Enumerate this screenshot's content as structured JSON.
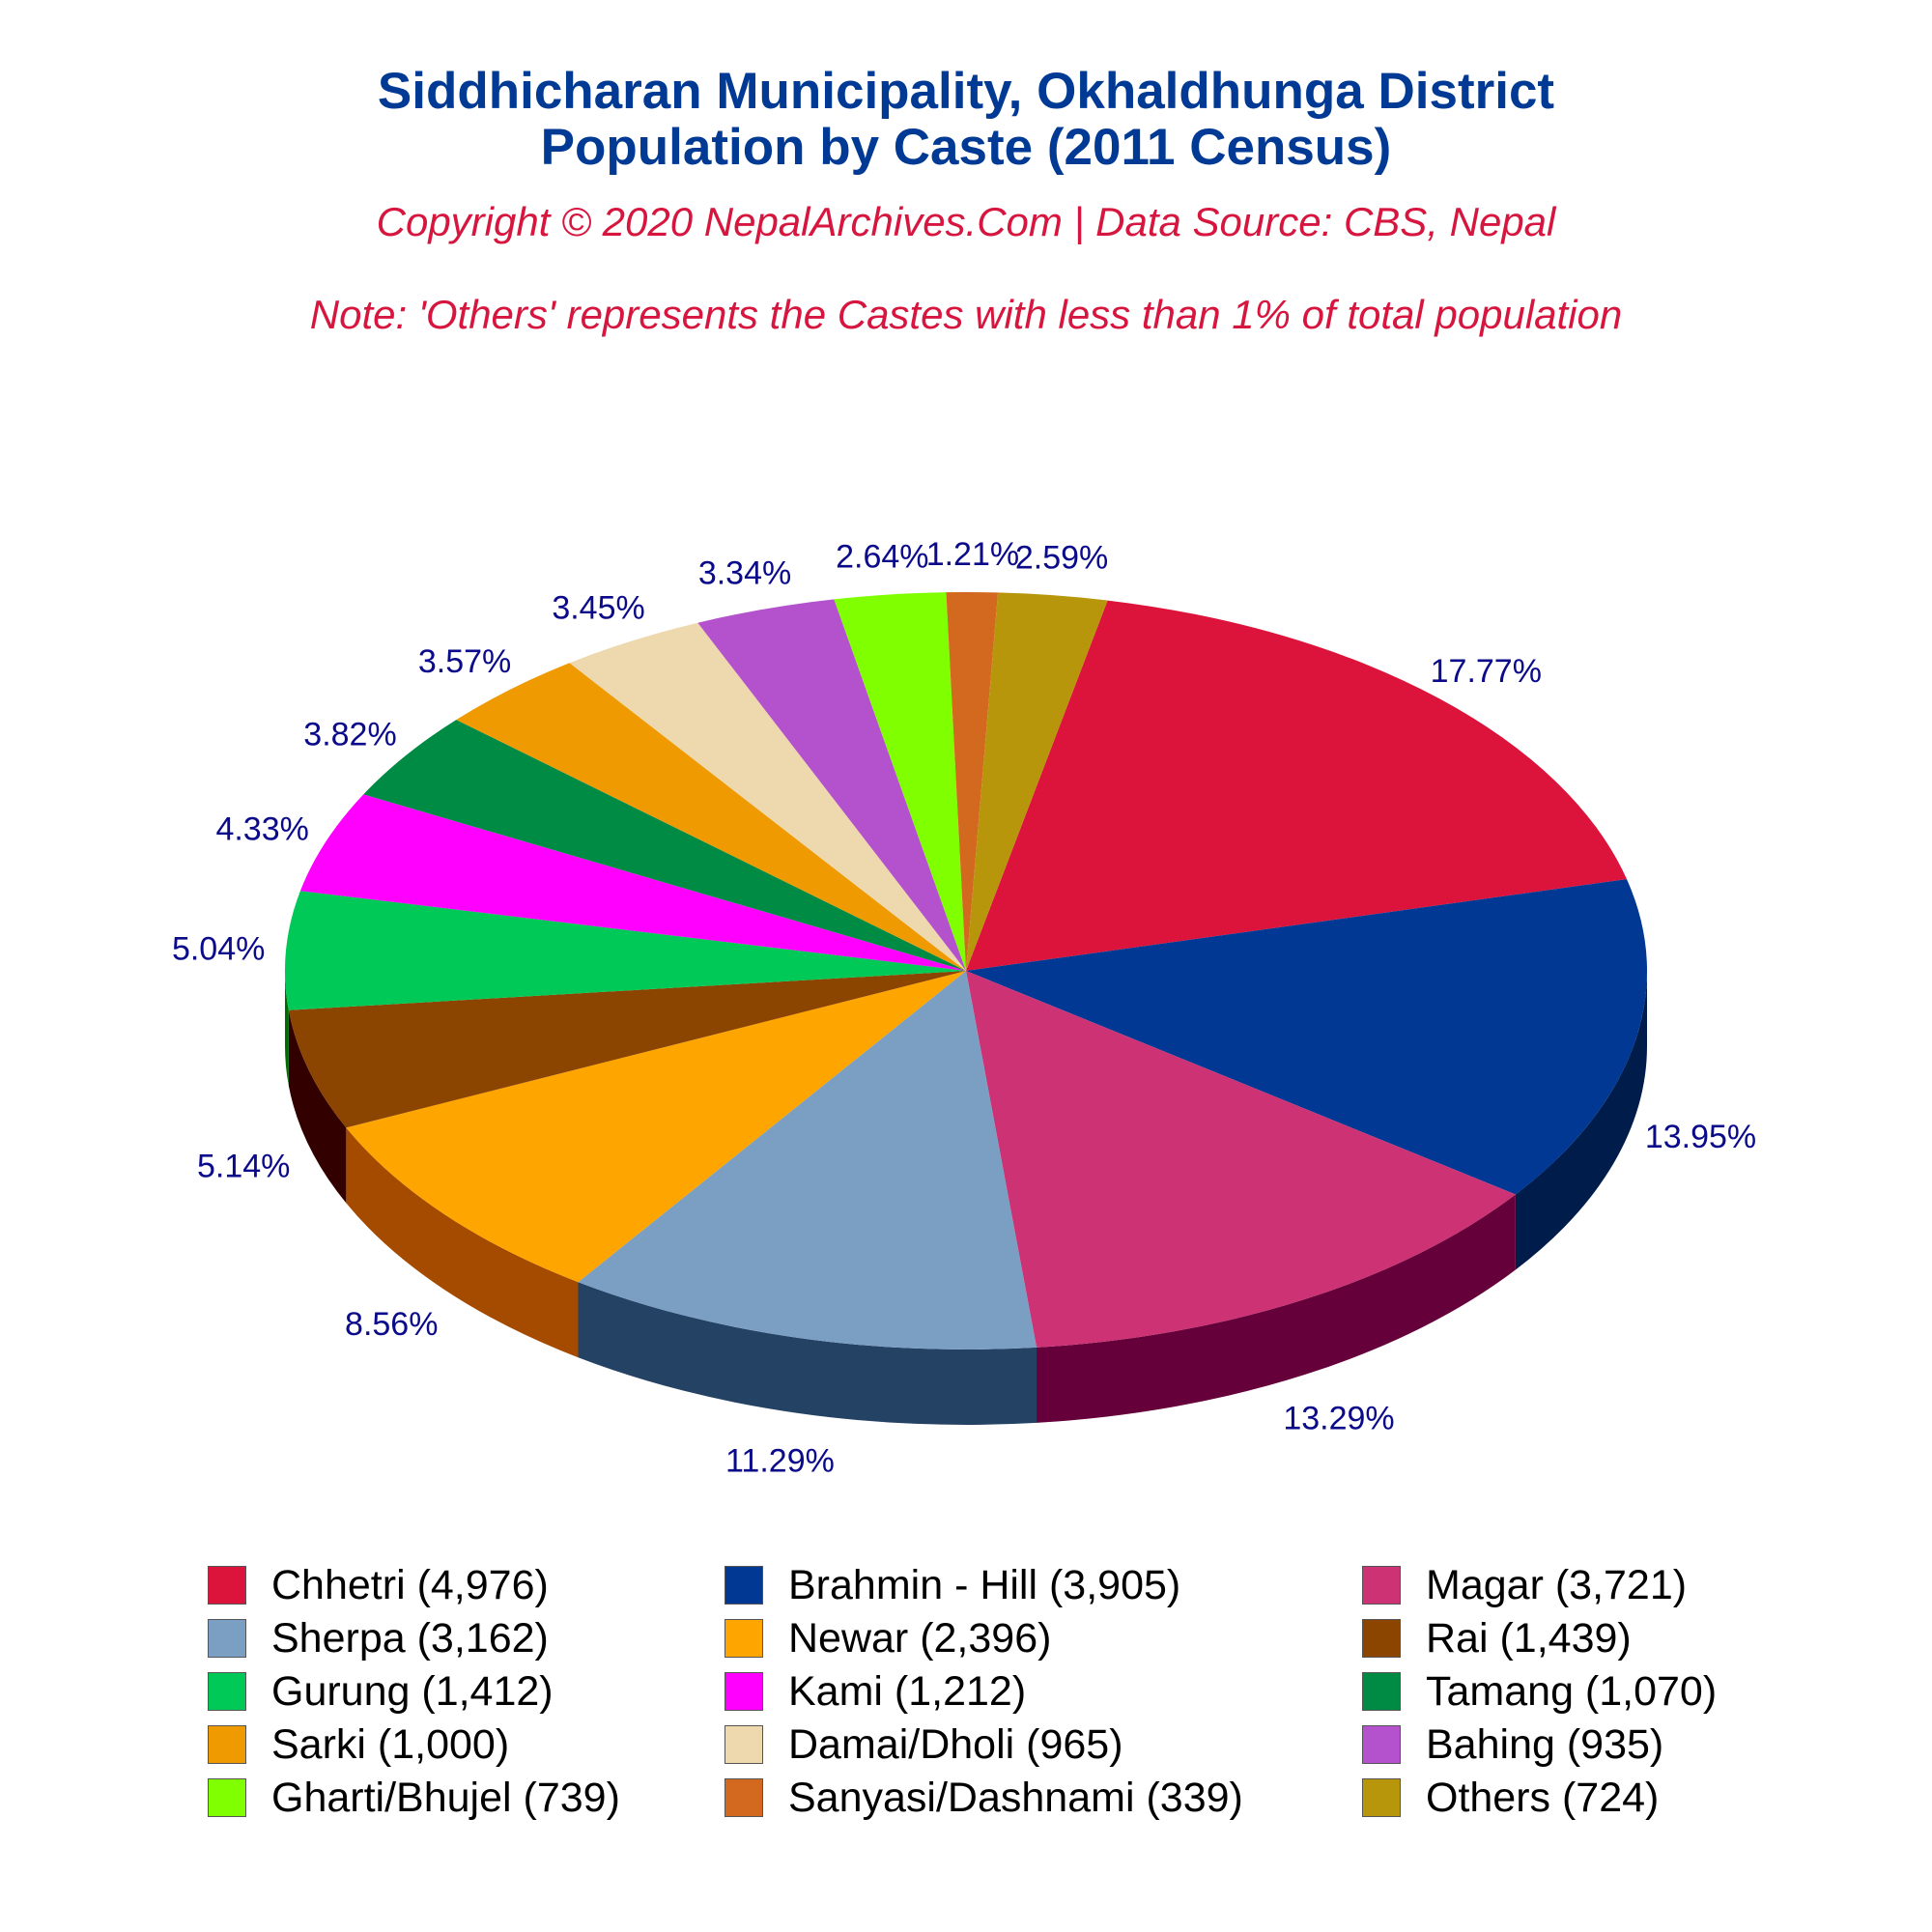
{
  "title_line1": "Siddhicharan Municipality, Okhaldhunga District",
  "title_line2": "Population by Caste (2011 Census)",
  "copyright": "Copyright © 2020 NepalArchives.Com | Data Source: CBS, Nepal",
  "note": "Note: 'Others' represents the Castes with less than 1% of total population",
  "chart_data": {
    "type": "pie",
    "style": "3d",
    "slices": [
      {
        "label": "Chhetri",
        "value": 4976,
        "percent_label": "17.77%",
        "legend": "Chhetri (4,976)",
        "color": "#dc143c",
        "side_color": "#6e0a1e"
      },
      {
        "label": "Brahmin - Hill",
        "value": 3905,
        "percent_label": "13.95%",
        "legend": "Brahmin - Hill (3,905)",
        "color": "#003893",
        "side_color": "#001c4a"
      },
      {
        "label": "Magar",
        "value": 3721,
        "percent_label": "13.29%",
        "legend": "Magar (3,721)",
        "color": "#cd3274",
        "side_color": "#66003a"
      },
      {
        "label": "Sherpa",
        "value": 3162,
        "percent_label": "11.29%",
        "legend": "Sherpa (3,162)",
        "color": "#7b9fc3",
        "side_color": "#244264"
      },
      {
        "label": "Newar",
        "value": 2396,
        "percent_label": "8.56%",
        "legend": "Newar (2,396)",
        "color": "#ffa500",
        "side_color": "#a54b00"
      },
      {
        "label": "Rai",
        "value": 1439,
        "percent_label": "5.14%",
        "legend": "Rai (1,439)",
        "color": "#8b4500",
        "side_color": "#330000"
      },
      {
        "label": "Gurung",
        "value": 1412,
        "percent_label": "5.04%",
        "legend": "Gurung (1,412)",
        "color": "#00c957",
        "side_color": "#006b00"
      },
      {
        "label": "Kami",
        "value": 1212,
        "percent_label": "4.33%",
        "legend": "Kami (1,212)",
        "color": "#ff00ff",
        "side_color": "#a000a0"
      },
      {
        "label": "Tamang",
        "value": 1070,
        "percent_label": "3.82%",
        "legend": "Tamang (1,070)",
        "color": "#008b45",
        "side_color": "#003300"
      },
      {
        "label": "Sarki",
        "value": 1000,
        "percent_label": "3.57%",
        "legend": "Sarki (1,000)",
        "color": "#ee9a00",
        "side_color": "#8a3c00"
      },
      {
        "label": "Damai/Dholi",
        "value": 965,
        "percent_label": "3.45%",
        "legend": "Damai/Dholi (965)",
        "color": "#eed8ae",
        "side_color": "#8b7a55"
      },
      {
        "label": "Bahing",
        "value": 935,
        "percent_label": "3.34%",
        "legend": "Bahing (935)",
        "color": "#b452cd",
        "side_color": "#5a1a6b"
      },
      {
        "label": "Gharti/Bhujel",
        "value": 739,
        "percent_label": "2.64%",
        "legend": "Gharti/Bhujel (739)",
        "color": "#7fff00",
        "side_color": "#3f7f00"
      },
      {
        "label": "Sanyasi/Dashnami",
        "value": 339,
        "percent_label": "1.21%",
        "legend": "Sanyasi/Dashnami (339)",
        "color": "#d2691e",
        "side_color": "#6a340f"
      },
      {
        "label": "Others",
        "value": 724,
        "percent_label": "2.59%",
        "legend": "Others (724)",
        "color": "#b8960c",
        "side_color": "#5c4b06"
      }
    ],
    "legend_columns": 3,
    "legend_placement": "bottom"
  }
}
